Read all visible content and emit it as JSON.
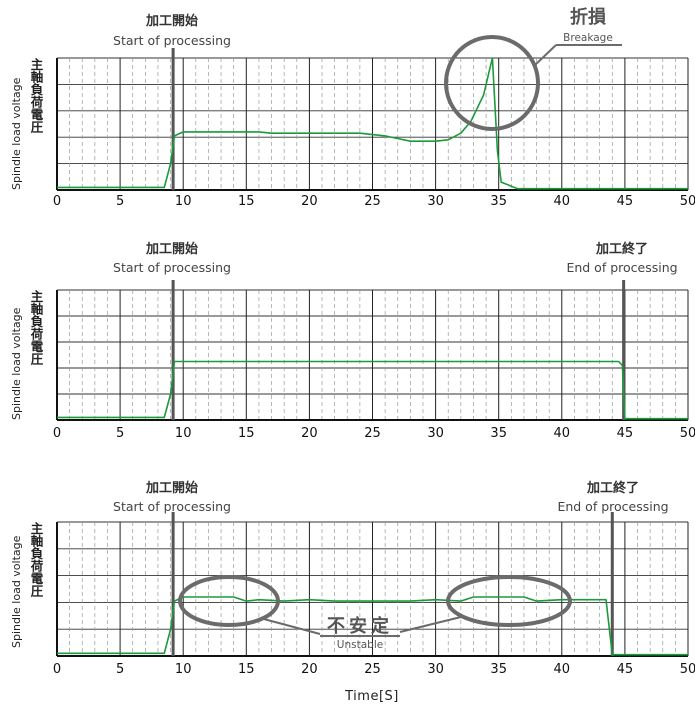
{
  "charts": {
    "breakage": {
      "ylabel_en": "Spindle load voltage",
      "ylabel_jp": "主軸負荷電圧",
      "start_jp": "加工開始",
      "start_en": "Start of processing",
      "break_jp": "折損",
      "break_en": "Breakage"
    },
    "normal": {
      "ylabel_en": "Spindle load voltage",
      "ylabel_jp": "主軸負荷電圧",
      "start_jp": "加工開始",
      "start_en": "Start of processing",
      "end_jp": "加工終了",
      "end_en": "End of processing"
    },
    "unstable": {
      "ylabel_en": "Spindle load voltage",
      "ylabel_jp": "主軸負荷電圧",
      "start_jp": "加工開始",
      "start_en": "Start of processing",
      "end_jp": "加工終了",
      "end_en": "End of processing",
      "unstable_jp": "不安定",
      "unstable_en": "Unstable"
    }
  },
  "xlabel": "Time[S]",
  "x_ticks": [
    "0",
    "5",
    "10",
    "15",
    "20",
    "25",
    "30",
    "35",
    "40",
    "45",
    "50"
  ],
  "colors": {
    "line": "#1a9a3a",
    "marker": "#555555",
    "annotation": "#6b6b6b"
  },
  "chart_data": [
    {
      "type": "line",
      "xlabel": "Time[S]",
      "ylabel": "Spindle load voltage",
      "xlim": [
        0,
        50
      ],
      "ylim": [
        0,
        5
      ],
      "grid": true,
      "series": [
        {
          "x": [
            0,
            8.5,
            9.0,
            9.3,
            10,
            11,
            12,
            13,
            14,
            15,
            16,
            17,
            18,
            19,
            20,
            21,
            22,
            23,
            24,
            25,
            26,
            27,
            28,
            29,
            30,
            31,
            32,
            32.8,
            33.3,
            33.8,
            34.2,
            34.5,
            34.9,
            35.2,
            36.5,
            50
          ],
          "y": [
            0.1,
            0.1,
            1.0,
            2.05,
            2.2,
            2.2,
            2.2,
            2.2,
            2.2,
            2.2,
            2.2,
            2.15,
            2.15,
            2.15,
            2.15,
            2.15,
            2.15,
            2.15,
            2.15,
            2.1,
            2.05,
            1.95,
            1.85,
            1.85,
            1.85,
            1.9,
            2.15,
            2.6,
            3.1,
            3.6,
            4.4,
            5.0,
            1.5,
            0.3,
            0.05,
            0.05
          ]
        }
      ]
    },
    {
      "type": "line",
      "xlabel": "Time[S]",
      "ylabel": "Spindle load voltage",
      "xlim": [
        0,
        50
      ],
      "ylim": [
        0,
        5
      ],
      "grid": true,
      "series": [
        {
          "x": [
            0,
            8.5,
            9.0,
            9.3,
            10,
            20,
            30,
            40,
            44.5,
            44.8,
            45.0,
            50
          ],
          "y": [
            0.1,
            0.1,
            1.0,
            2.25,
            2.25,
            2.25,
            2.25,
            2.25,
            2.25,
            2.1,
            0.05,
            0.05
          ]
        }
      ]
    },
    {
      "type": "line",
      "xlabel": "Time[S]",
      "ylabel": "Spindle load voltage",
      "xlim": [
        0,
        50
      ],
      "ylim": [
        0,
        5
      ],
      "grid": true,
      "series": [
        {
          "x": [
            0,
            8.5,
            9.0,
            9.3,
            10,
            11,
            12,
            13,
            14,
            15,
            16,
            18,
            20,
            22,
            24,
            26,
            28,
            30,
            32,
            33,
            34,
            35,
            36,
            37,
            38,
            40,
            42,
            43.5,
            44.0,
            44.2,
            50
          ],
          "y": [
            0.1,
            0.1,
            1.0,
            2.05,
            2.2,
            2.2,
            2.2,
            2.2,
            2.2,
            2.05,
            2.1,
            2.05,
            2.1,
            2.05,
            2.05,
            2.05,
            2.05,
            2.1,
            2.05,
            2.2,
            2.2,
            2.2,
            2.2,
            2.2,
            2.05,
            2.1,
            2.1,
            2.1,
            0.05,
            0.05,
            0.05
          ]
        }
      ]
    }
  ]
}
